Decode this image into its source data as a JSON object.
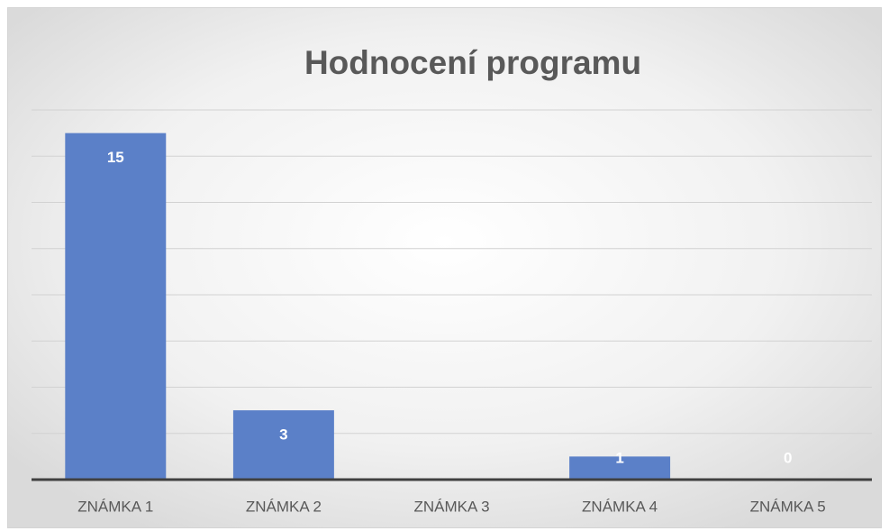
{
  "chart_data": {
    "type": "bar",
    "title": "Hodnocení programu",
    "categories": [
      "ZNÁMKA 1",
      "ZNÁMKA 2",
      "ZNÁMKA 3",
      "ZNÁMKA 4",
      "ZNÁMKA 5"
    ],
    "values": [
      15,
      3,
      null,
      1,
      0
    ],
    "color": "#5b80c8",
    "ylim": [
      0,
      16
    ],
    "yticks": [
      0,
      2,
      4,
      6,
      8,
      10,
      12,
      14,
      16
    ],
    "grid": true
  }
}
